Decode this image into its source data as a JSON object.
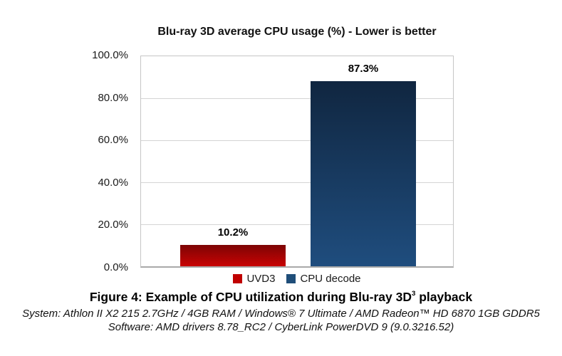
{
  "chart_data": {
    "type": "bar",
    "title": "Blu-ray 3D average CPU usage (%) - Lower is better",
    "categories": [
      "UVD3",
      "CPU decode"
    ],
    "values": [
      10.2,
      87.3
    ],
    "ylim": [
      0,
      100
    ],
    "ytick_labels": [
      "100.0%",
      "80.0%",
      "60.0%",
      "40.0%",
      "20.0%",
      "0.0%"
    ],
    "grid": true,
    "legend_position": "bottom",
    "series": [
      {
        "name": "UVD3",
        "value": 10.2,
        "label": "10.2%",
        "color": "#c00000",
        "gradient_top": "#7d0404",
        "gradient_bottom": "#c90303"
      },
      {
        "name": "CPU decode",
        "value": 87.3,
        "label": "87.3%",
        "color": "#1f4e79",
        "gradient_top": "#102640",
        "gradient_bottom": "#1f4d7e"
      }
    ]
  },
  "caption": {
    "prefix": "Figure 4: Example of CPU utilization during Blu-ray 3D",
    "superscript": "3",
    "suffix": " playback"
  },
  "footnotes": {
    "system": "System: Athlon II X2 215 2.7GHz / 4GB RAM / Windows® 7 Ultimate / AMD Radeon™ HD 6870 1GB GDDR5",
    "software": "Software: AMD drivers 8.78_RC2 / CyberLink PowerDVD 9 (9.0.3216.52)"
  }
}
